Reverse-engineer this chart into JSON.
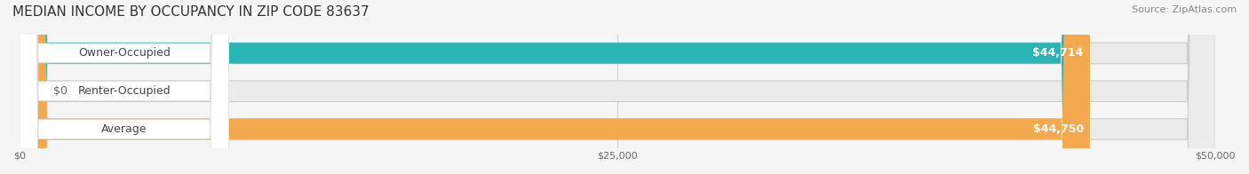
{
  "title": "MEDIAN INCOME BY OCCUPANCY IN ZIP CODE 83637",
  "source": "Source: ZipAtlas.com",
  "categories": [
    "Owner-Occupied",
    "Renter-Occupied",
    "Average"
  ],
  "values": [
    44714,
    0,
    44750
  ],
  "bar_colors": [
    "#2ab5b5",
    "#c9a8d4",
    "#f5a94e"
  ],
  "label_colors": [
    "#2ab5b5",
    "#c9a8d4",
    "#f5a94e"
  ],
  "bar_labels": [
    "$44,714",
    "$0",
    "$44,750"
  ],
  "xlim": [
    0,
    50000
  ],
  "xticks": [
    0,
    25000,
    50000
  ],
  "xticklabels": [
    "$0",
    "$25,000",
    "$50,000"
  ],
  "background_color": "#f5f5f5",
  "bar_bg_color": "#ebebeb",
  "title_fontsize": 11,
  "source_fontsize": 8,
  "bar_height": 0.55,
  "bar_label_fontsize": 9,
  "category_fontsize": 9
}
